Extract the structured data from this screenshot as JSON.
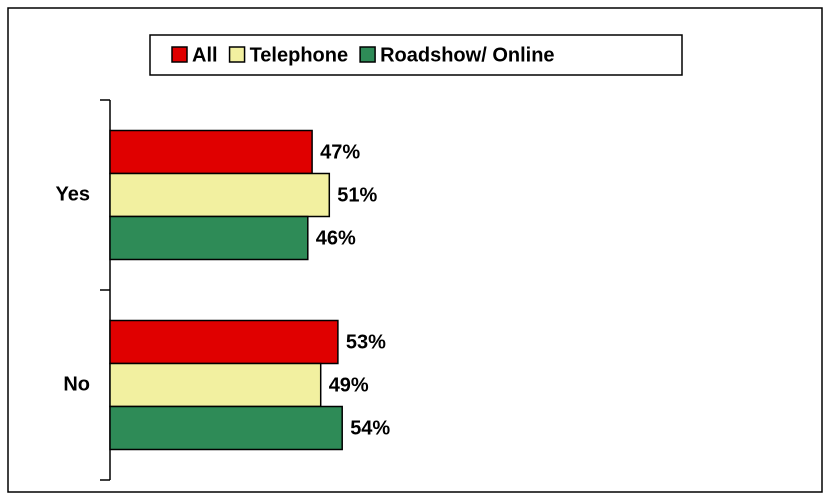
{
  "chart_data": {
    "type": "bar",
    "orientation": "horizontal",
    "categories": [
      "Yes",
      "No"
    ],
    "series": [
      {
        "name": "All",
        "color": "#e00000",
        "values": [
          47,
          53
        ],
        "value_labels": [
          "47%",
          "53%"
        ]
      },
      {
        "name": "Telephone",
        "color": "#f2f0a0",
        "values": [
          51,
          49
        ],
        "value_labels": [
          "51%",
          "49%"
        ]
      },
      {
        "name": "Roadshow/ Online",
        "color": "#2e8b57",
        "values": [
          46,
          54
        ],
        "value_labels": [
          "46%",
          "54%"
        ]
      }
    ],
    "legend": "top"
  }
}
